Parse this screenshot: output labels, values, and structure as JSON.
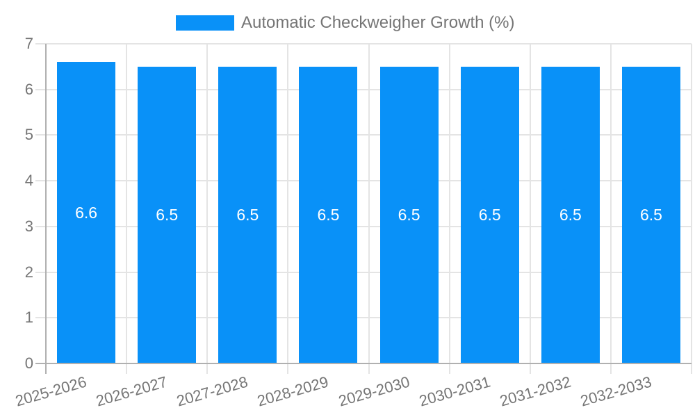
{
  "chart_data": {
    "type": "bar",
    "title": "",
    "legend": {
      "label": "Automatic Checkweigher Growth (%)",
      "position": "top"
    },
    "categories": [
      "2025-2026",
      "2026-2027",
      "2027-2028",
      "2028-2029",
      "2029-2030",
      "2030-2031",
      "2031-2032",
      "2032-2033"
    ],
    "values": [
      6.6,
      6.5,
      6.5,
      6.5,
      6.5,
      6.5,
      6.5,
      6.5
    ],
    "bar_labels": [
      "6.6",
      "6.5",
      "6.5",
      "6.5",
      "6.5",
      "6.5",
      "6.5",
      "6.5"
    ],
    "y_ticks": [
      0,
      1,
      2,
      3,
      4,
      5,
      6,
      7
    ],
    "ylim": [
      0,
      7
    ],
    "xlabel": "",
    "ylabel": "",
    "grid": true,
    "colors": {
      "bar": "#0991f8",
      "bar_label": "#ffffff",
      "axis_text": "#757575",
      "grid_light": "#e4e4e4",
      "grid_dark": "#b0b0b0",
      "background": "#ffffff"
    }
  }
}
